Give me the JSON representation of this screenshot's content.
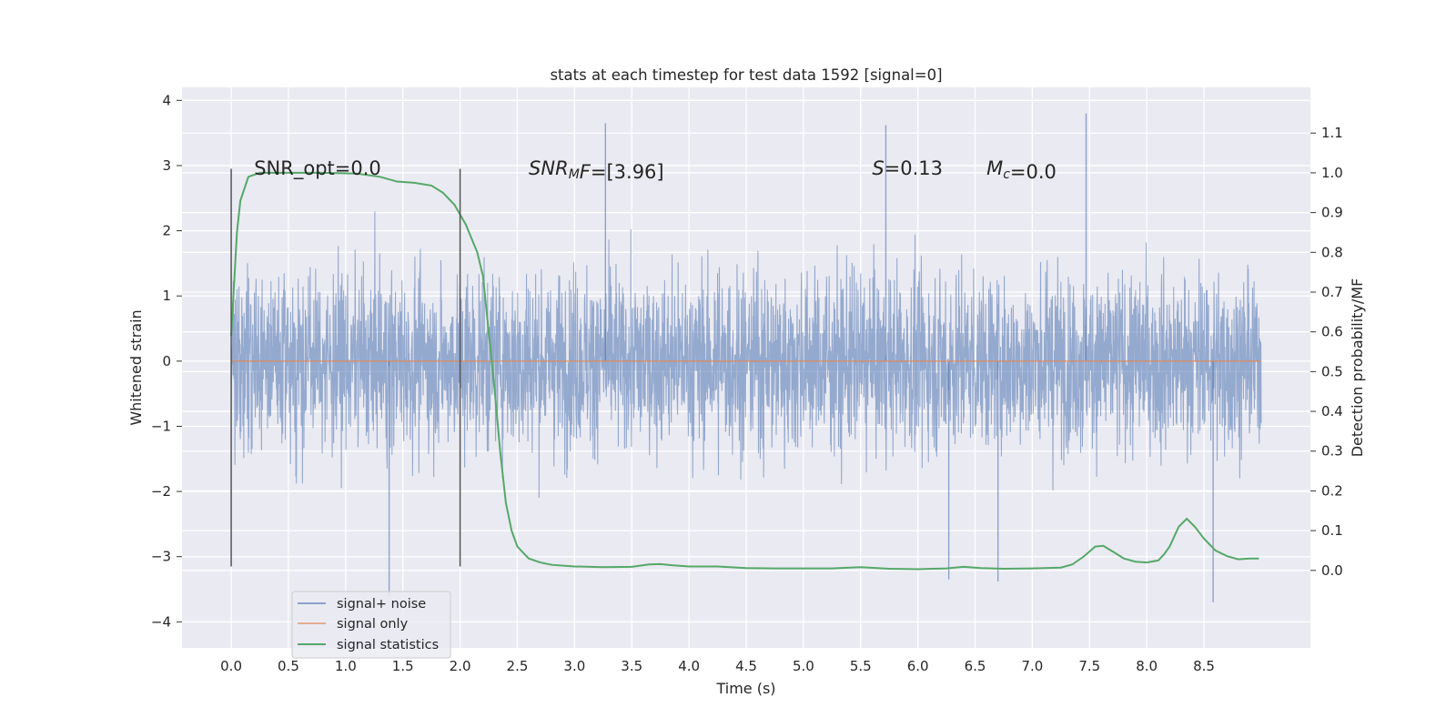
{
  "chart_data": {
    "type": "line",
    "title": "stats at each timestep for test data 1592 [signal=0]",
    "xlabel": "Time (s)",
    "ylabel": "Whitened strain",
    "y2label": "Detection probability/MF",
    "xlim": [
      -0.43,
      9.43
    ],
    "ylim": [
      -4.4,
      4.2
    ],
    "y2lim": [
      -0.195,
      1.215
    ],
    "x_ticks": [
      0.0,
      0.5,
      1.0,
      1.5,
      2.0,
      2.5,
      3.0,
      3.5,
      4.0,
      4.5,
      5.0,
      5.5,
      6.0,
      6.5,
      7.0,
      7.5,
      8.0,
      8.5
    ],
    "x_tick_labels": [
      "0.0",
      "0.5",
      "1.0",
      "1.5",
      "2.0",
      "2.5",
      "3.0",
      "3.5",
      "4.0",
      "4.5",
      "5.0",
      "5.5",
      "6.0",
      "6.5",
      "7.0",
      "7.5",
      "8.0",
      "8.5"
    ],
    "y_ticks": [
      4,
      3,
      2,
      1,
      0,
      -1,
      -2,
      -3,
      -4
    ],
    "y_tick_labels": [
      "4",
      "3",
      "2",
      "1",
      "0",
      "−1",
      "−2",
      "−3",
      "−4"
    ],
    "y2_ticks": [
      1.1,
      1.0,
      0.9,
      0.8,
      0.7,
      0.6,
      0.5,
      0.4,
      0.3,
      0.2,
      0.1,
      0.0
    ],
    "y2_tick_labels": [
      "1.1",
      "1.0",
      "0.9",
      "0.8",
      "0.7",
      "0.6",
      "0.5",
      "0.4",
      "0.3",
      "0.2",
      "0.1",
      "0.0"
    ],
    "grid": true,
    "legend_position": "lower-left",
    "window_markers": {
      "x": [
        0.0,
        2.0
      ],
      "y_range": [
        -3.15,
        2.95
      ]
    },
    "noise_envelope": {
      "x": [
        0.0,
        9.0
      ],
      "typical_peak": 2.2,
      "max_peak": 3.8,
      "min_peak": -3.7,
      "note_points": [
        {
          "x": 3.27,
          "y": 3.65
        },
        {
          "x": 5.72,
          "y": 3.62
        },
        {
          "x": 7.47,
          "y": 3.8
        },
        {
          "x": 1.38,
          "y": -3.6
        },
        {
          "x": 8.58,
          "y": -3.7
        },
        {
          "x": 6.27,
          "y": -3.35
        },
        {
          "x": 6.7,
          "y": -3.38
        }
      ]
    },
    "series": [
      {
        "name": "signal+ noise",
        "color": "#4c72b0",
        "axis": "left",
        "x": [
          0.0,
          9.0
        ],
        "y": [
          0.0,
          0.0
        ]
      },
      {
        "name": "signal only",
        "color": "#dd8452",
        "axis": "left",
        "x": [
          0.0,
          9.0
        ],
        "y": [
          0.0,
          0.0
        ]
      },
      {
        "name": "signal statistics",
        "color": "#55a868",
        "axis": "right",
        "x": [
          0.0,
          0.05,
          0.08,
          0.15,
          0.25,
          0.5,
          0.8,
          1.1,
          1.3,
          1.45,
          1.6,
          1.75,
          1.85,
          1.95,
          2.05,
          2.15,
          2.2,
          2.25,
          2.3,
          2.35,
          2.4,
          2.45,
          2.5,
          2.55,
          2.6,
          2.7,
          2.8,
          3.0,
          3.25,
          3.5,
          3.65,
          3.75,
          3.85,
          4.0,
          4.25,
          4.5,
          4.75,
          5.0,
          5.25,
          5.5,
          5.75,
          6.0,
          6.25,
          6.4,
          6.55,
          6.75,
          7.0,
          7.25,
          7.35,
          7.45,
          7.55,
          7.62,
          7.7,
          7.8,
          7.9,
          8.0,
          8.1,
          8.15,
          8.2,
          8.28,
          8.35,
          8.42,
          8.5,
          8.6,
          8.7,
          8.8,
          8.9,
          8.98
        ],
        "y": [
          0.59,
          0.85,
          0.93,
          0.99,
          1.0,
          1.0,
          1.0,
          0.998,
          0.99,
          0.978,
          0.975,
          0.968,
          0.95,
          0.92,
          0.87,
          0.8,
          0.74,
          0.6,
          0.46,
          0.3,
          0.17,
          0.1,
          0.06,
          0.045,
          0.03,
          0.02,
          0.014,
          0.01,
          0.008,
          0.009,
          0.015,
          0.016,
          0.013,
          0.01,
          0.01,
          0.006,
          0.005,
          0.005,
          0.005,
          0.008,
          0.004,
          0.003,
          0.005,
          0.009,
          0.006,
          0.004,
          0.005,
          0.007,
          0.015,
          0.035,
          0.06,
          0.062,
          0.048,
          0.03,
          0.022,
          0.02,
          0.025,
          0.04,
          0.06,
          0.11,
          0.13,
          0.11,
          0.08,
          0.05,
          0.036,
          0.028,
          0.03,
          0.03
        ]
      }
    ],
    "annotations": [
      {
        "x": 0.2,
        "y": 2.86,
        "text": "SNR_opt=0.0"
      },
      {
        "x": 2.6,
        "y": 2.86,
        "text_parts": [
          {
            "t": "SNR",
            "i": true
          },
          {
            "t": "M",
            "i": true,
            "sub": true
          },
          {
            "t": "F",
            "i": true
          },
          {
            "t": "=[3.96]",
            "i": false
          }
        ]
      },
      {
        "x": 5.6,
        "y": 2.86,
        "text_parts": [
          {
            "t": "S",
            "i": true
          },
          {
            "t": "=0.13",
            "i": false
          }
        ]
      },
      {
        "x": 6.6,
        "y": 2.86,
        "text_parts": [
          {
            "t": "M",
            "i": true
          },
          {
            "t": "c",
            "i": true,
            "sub": true
          },
          {
            "t": "=0.0",
            "i": false
          }
        ]
      }
    ]
  }
}
